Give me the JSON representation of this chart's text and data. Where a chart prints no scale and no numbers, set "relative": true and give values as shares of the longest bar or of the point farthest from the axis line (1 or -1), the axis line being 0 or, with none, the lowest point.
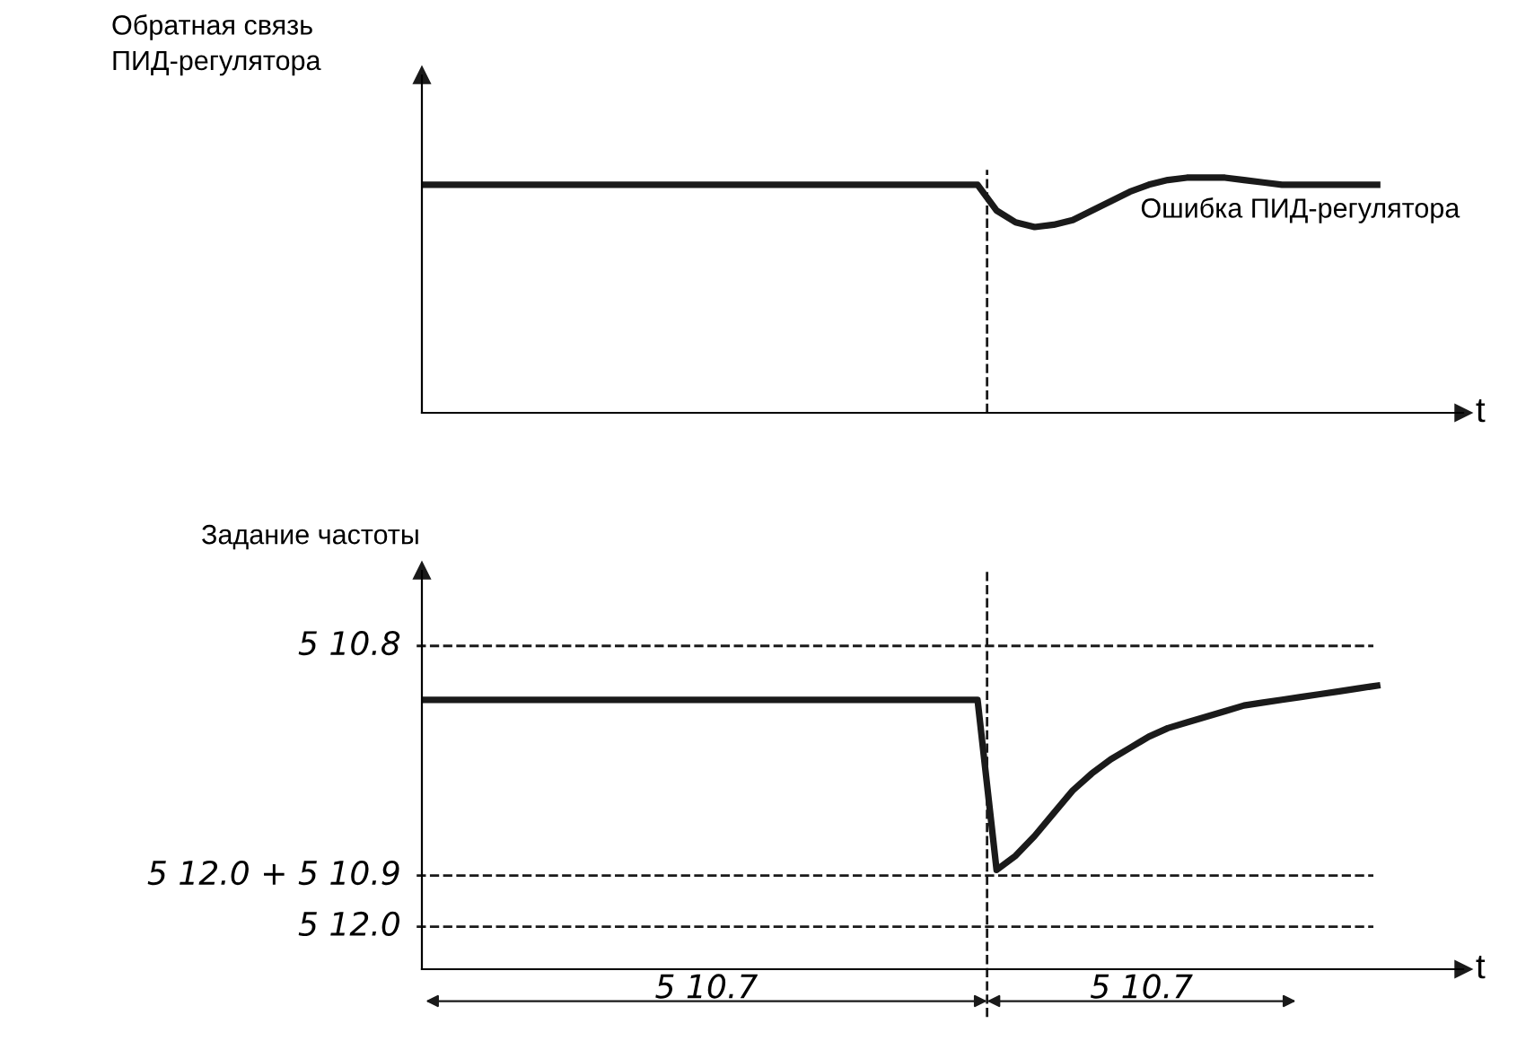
{
  "chart_data": [
    {
      "type": "line",
      "relative": true,
      "ylabel": "Обратная связь\nПИД-регулятора",
      "xlabel": "t",
      "categories": [
        null,
        null,
        null,
        null,
        null,
        null,
        null,
        null,
        null,
        null,
        null,
        null,
        null,
        null,
        null,
        null,
        null,
        null,
        null,
        null,
        null,
        null,
        null,
        null,
        null,
        null,
        null,
        null,
        null,
        null,
        null,
        null,
        null,
        null,
        null,
        null,
        null,
        null,
        null,
        null,
        null,
        null,
        null,
        null,
        null,
        null,
        null,
        null,
        null,
        null,
        null
      ],
      "series": [
        {
          "color": "#1a1a1a",
          "values": [
            0.97,
            0.97,
            0.97,
            0.97,
            0.97,
            0.97,
            0.97,
            0.97,
            0.97,
            0.97,
            0.97,
            0.97,
            0.97,
            0.97,
            0.97,
            0.97,
            0.97,
            0.97,
            0.97,
            0.97,
            0.97,
            0.97,
            0.97,
            0.97,
            0.97,
            0.97,
            0.97,
            0.97,
            0.97,
            0.97,
            0.86,
            0.81,
            0.79,
            0.8,
            0.82,
            0.86,
            0.9,
            0.94,
            0.97,
            0.99,
            1.0,
            1.0,
            1.0,
            0.99,
            0.98,
            0.97,
            0.97,
            0.97,
            0.97,
            0.97,
            0.97
          ]
        }
      ],
      "annotations": [
        "Ошибка ПИД-регулятора"
      ],
      "line_style": "solid",
      "marker": "none",
      "legend": false
    },
    {
      "type": "line",
      "relative": true,
      "ylabel": "Задание частоты",
      "xlabel": "t",
      "categories": [
        null,
        null,
        null,
        null,
        null,
        null,
        null,
        null,
        null,
        null,
        null,
        null,
        null,
        null,
        null,
        null,
        null,
        null,
        null,
        null,
        null,
        null,
        null,
        null,
        null,
        null,
        null,
        null,
        null,
        null,
        null,
        null,
        null,
        null,
        null,
        null,
        null,
        null,
        null,
        null,
        null,
        null,
        null,
        null,
        null,
        null,
        null,
        null,
        null,
        null,
        null
      ],
      "series": [
        {
          "color": "#1a1a1a",
          "values": [
            0.95,
            0.95,
            0.95,
            0.95,
            0.95,
            0.95,
            0.95,
            0.95,
            0.95,
            0.95,
            0.95,
            0.95,
            0.95,
            0.95,
            0.95,
            0.95,
            0.95,
            0.95,
            0.95,
            0.95,
            0.95,
            0.95,
            0.95,
            0.95,
            0.95,
            0.95,
            0.95,
            0.95,
            0.95,
            0.95,
            0.35,
            0.4,
            0.47,
            0.55,
            0.63,
            0.69,
            0.74,
            0.78,
            0.82,
            0.85,
            0.87,
            0.89,
            0.91,
            0.93,
            0.94,
            0.95,
            0.96,
            0.97,
            0.98,
            0.99,
            1.0
          ]
        }
      ],
      "ref_lines": [
        {
          "axis": "y",
          "value": 1.14,
          "line_style": "dashed",
          "color": "#1a1a1a"
        },
        {
          "axis": "y",
          "value": 0.33,
          "line_style": "dashed",
          "color": "#1a1a1a"
        },
        {
          "axis": "y",
          "value": 0.15,
          "line_style": "dashed",
          "color": "#1a1a1a"
        }
      ],
      "annotations": [
        "5 10.8",
        "5 12.0 + 5 10.9",
        "5 12.0",
        "5 10.7",
        "5 10.7"
      ],
      "line_style": "solid",
      "marker": "none",
      "legend": false
    }
  ]
}
